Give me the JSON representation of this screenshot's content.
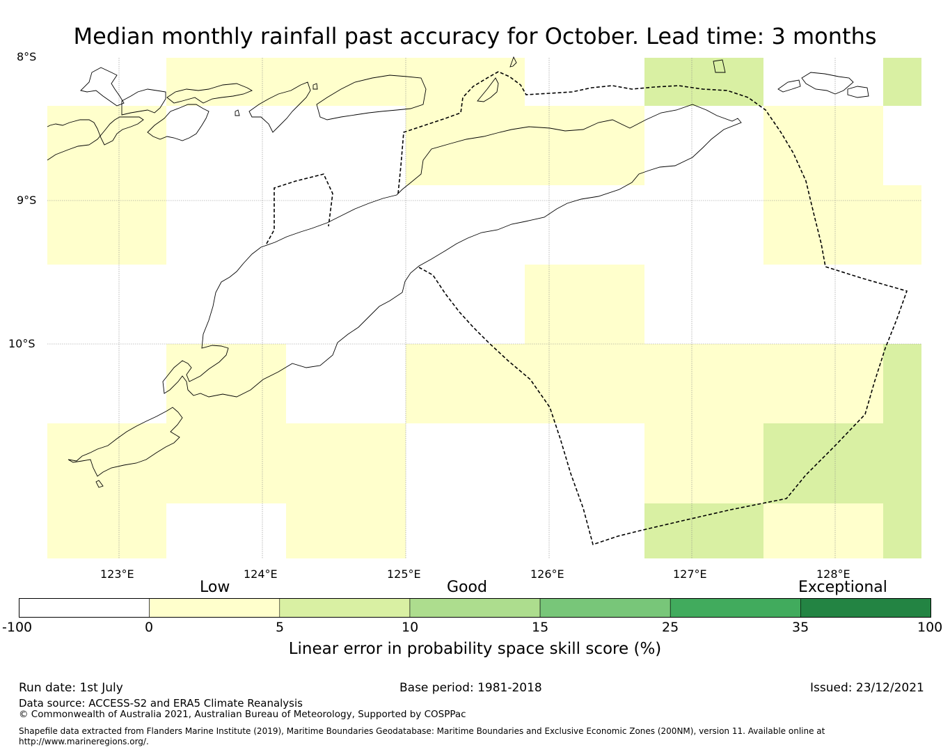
{
  "title": "Median monthly rainfall past accuracy for October. Lead time: 3 months",
  "map": {
    "lat_labels": [
      "8°S",
      "9°S",
      "10°S"
    ],
    "lon_labels": [
      "123°E",
      "124°E",
      "125°E",
      "126°E",
      "127°E",
      "128°E"
    ],
    "lon_range": [
      122.5,
      128.6
    ],
    "lat_range": [
      -8.0,
      -11.5
    ],
    "colors": {
      "low": "#ffffcc",
      "good_5_10": "#d9f0a3",
      "coast": "#000000",
      "boundary": "#000000"
    }
  },
  "colorbar": {
    "categories": [
      "Low",
      "Good",
      "Exceptional"
    ],
    "ticks": [
      "-100",
      "0",
      "5",
      "10",
      "15",
      "25",
      "35",
      "100"
    ],
    "bins": [
      {
        "range": "-100 to 0",
        "color": "#ffffff"
      },
      {
        "range": "0 to 5",
        "color": "#ffffcc"
      },
      {
        "range": "5 to 10",
        "color": "#d9f0a3"
      },
      {
        "range": "10 to 15",
        "color": "#addd8e"
      },
      {
        "range": "15 to 25",
        "color": "#78c679"
      },
      {
        "range": "25 to 35",
        "color": "#41ab5d"
      },
      {
        "range": "35 to 100",
        "color": "#238443"
      }
    ],
    "label": "Linear error in probability space skill score (%)"
  },
  "footer": {
    "run_date": "Run date: 1st July",
    "base_period": "Base period: 1981-2018",
    "issued": "Issued: 23/12/2021",
    "data_source": "Data source: ACCESS-S2 and ERA5 Climate Reanalysis",
    "copyright": "© Commonwealth of Australia 2021, Australian Bureau of Meteorology, Supported by COSPPac",
    "shapefile_line1": "Shapefile data extracted from Flanders Marine Institute (2019), Maritime Boundaries Geodatabase: Maritime Boundaries and Exclusive Economic Zones (200NM), version 11. Available online at",
    "shapefile_line2": "http://www.marineregions.org/."
  }
}
